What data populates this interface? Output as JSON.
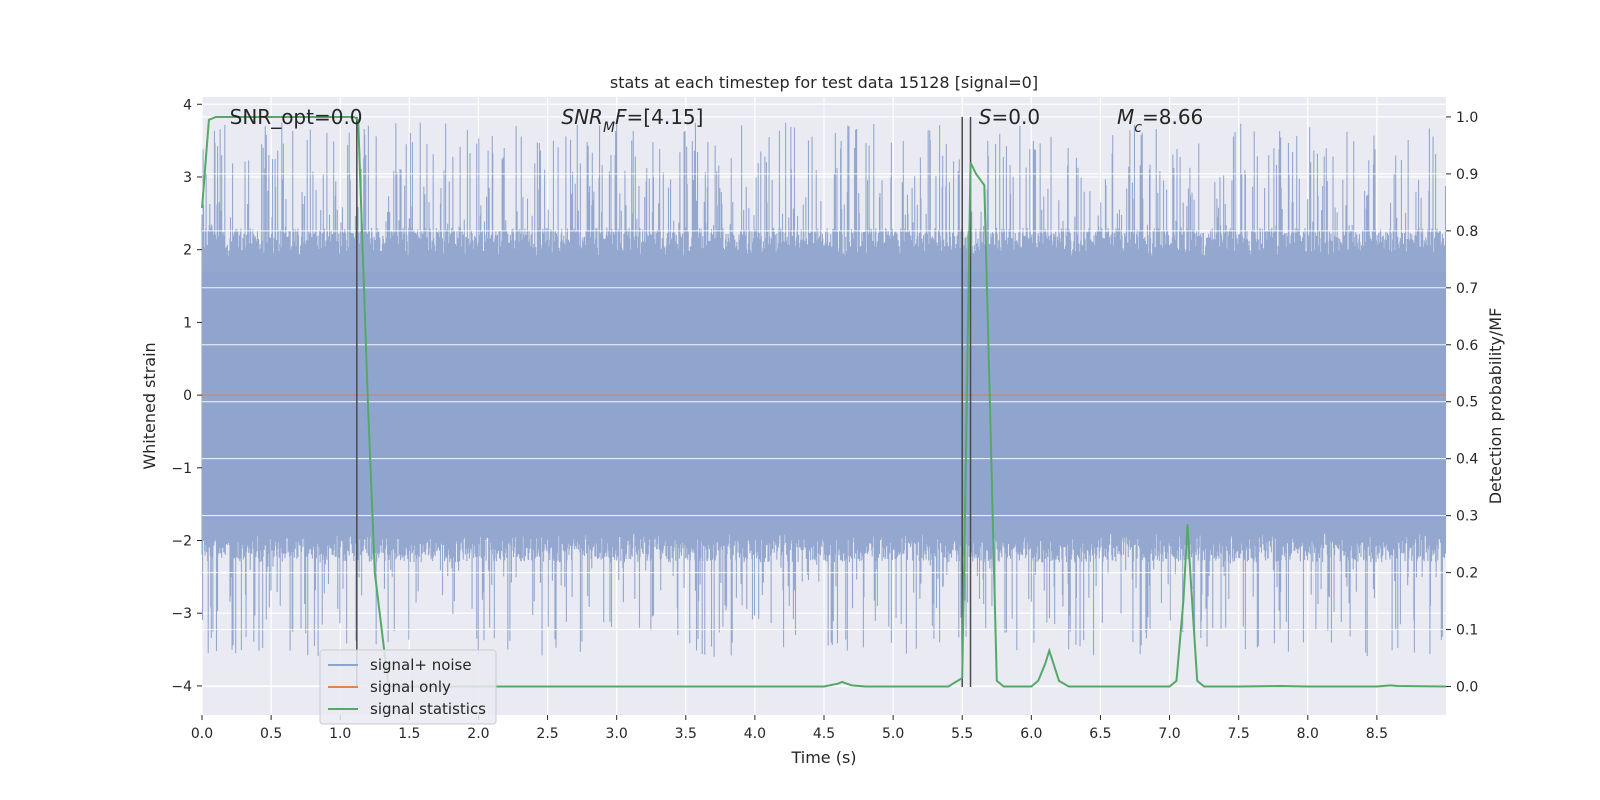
{
  "chart_data": {
    "type": "line",
    "title": "stats at each timestep for test data 15128 [signal=0]",
    "xlabel": "Time (s)",
    "ylabel_left": "Whitened strain",
    "ylabel_right": "Detection probability/MF",
    "xlim": [
      0.0,
      9.0
    ],
    "ylim_left": [
      -4.4,
      4.1
    ],
    "ylim_right": [
      -0.05,
      1.035
    ],
    "x_ticks": [
      0.0,
      0.5,
      1.0,
      1.5,
      2.0,
      2.5,
      3.0,
      3.5,
      4.0,
      4.5,
      5.0,
      5.5,
      6.0,
      6.5,
      7.0,
      7.5,
      8.0,
      8.5
    ],
    "x_tick_labels": [
      "0.0",
      "0.5",
      "1.0",
      "1.5",
      "2.0",
      "2.5",
      "3.0",
      "3.5",
      "4.0",
      "4.5",
      "5.0",
      "5.5",
      "6.0",
      "6.5",
      "7.0",
      "7.5",
      "8.0",
      "8.5"
    ],
    "y_left_ticks": [
      4,
      3,
      2,
      1,
      0,
      -1,
      -2,
      -3,
      -4
    ],
    "y_left_tick_labels": [
      "4",
      "3",
      "2",
      "1",
      "0",
      "−1",
      "−2",
      "−3",
      "−4"
    ],
    "y_right_ticks": [
      1.0,
      0.9,
      0.8,
      0.7,
      0.6,
      0.5,
      0.4,
      0.3,
      0.2,
      0.1,
      0.0
    ],
    "y_right_tick_labels": [
      "1.0",
      "0.9",
      "0.8",
      "0.7",
      "0.6",
      "0.5",
      "0.4",
      "0.3",
      "0.2",
      "0.1",
      "0.0"
    ],
    "grid": true,
    "legend_position": "lower-left",
    "annotations": [
      {
        "parts": [
          {
            "t": "SNR_opt=0.0"
          }
        ],
        "at_x": 0.2
      },
      {
        "parts": [
          {
            "t": "SNR",
            "i": true
          },
          {
            "t": "M",
            "i": true,
            "sub": true
          },
          {
            "t": "F",
            "i": true
          },
          {
            "t": "=[4.15]"
          }
        ],
        "at_x": 2.6
      },
      {
        "parts": [
          {
            "t": "S",
            "i": true
          },
          {
            "t": "=0.0"
          }
        ],
        "at_x": 5.62
      },
      {
        "parts": [
          {
            "t": "M",
            "i": true
          },
          {
            "t": "c",
            "i": true,
            "sub": true
          },
          {
            "t": "=8.66"
          }
        ],
        "at_x": 6.62
      }
    ],
    "vertical_lines_x": [
      1.12,
      5.5,
      5.56
    ],
    "series": [
      {
        "name": "signal+ noise",
        "axis": "left",
        "color": "#8fa4cc",
        "kind": "noise",
        "band_typical": [
          -1.7,
          1.7
        ],
        "extent_max": 3.75,
        "extent_min": -4.0
      },
      {
        "name": "signal only",
        "axis": "left",
        "color": "#dd8452",
        "x": [
          0.0,
          9.0
        ],
        "y": [
          0.0,
          0.0
        ]
      },
      {
        "name": "signal statistics",
        "axis": "right",
        "color": "#55a868",
        "x": [
          0.0,
          0.05,
          0.1,
          0.15,
          0.2,
          0.5,
          0.8,
          1.05,
          1.1,
          1.13,
          1.2,
          1.25,
          1.35,
          1.6,
          2.0,
          3.0,
          4.0,
          4.5,
          4.6,
          4.63,
          4.7,
          4.8,
          5.0,
          5.4,
          5.5,
          5.52,
          5.56,
          5.6,
          5.66,
          5.7,
          5.75,
          5.8,
          6.0,
          6.05,
          6.1,
          6.13,
          6.2,
          6.27,
          6.5,
          7.0,
          7.05,
          7.1,
          7.13,
          7.15,
          7.2,
          7.25,
          7.5,
          7.8,
          8.0,
          8.5,
          8.6,
          8.65,
          9.0
        ],
        "y": [
          0.84,
          0.995,
          1.0,
          1.0,
          1.0,
          1.0,
          1.0,
          1.0,
          1.0,
          0.995,
          0.5,
          0.2,
          0.0,
          0.0,
          0.0,
          0.0,
          0.0,
          0.0,
          0.005,
          0.008,
          0.002,
          0.0,
          0.0,
          0.0,
          0.015,
          0.3,
          0.92,
          0.9,
          0.88,
          0.5,
          0.01,
          0.0,
          0.0,
          0.01,
          0.04,
          0.063,
          0.01,
          0.0,
          0.0,
          0.0,
          0.01,
          0.15,
          0.285,
          0.2,
          0.01,
          0.0,
          0.0,
          0.001,
          0.0,
          0.0,
          0.002,
          0.001,
          0.0
        ]
      }
    ]
  }
}
